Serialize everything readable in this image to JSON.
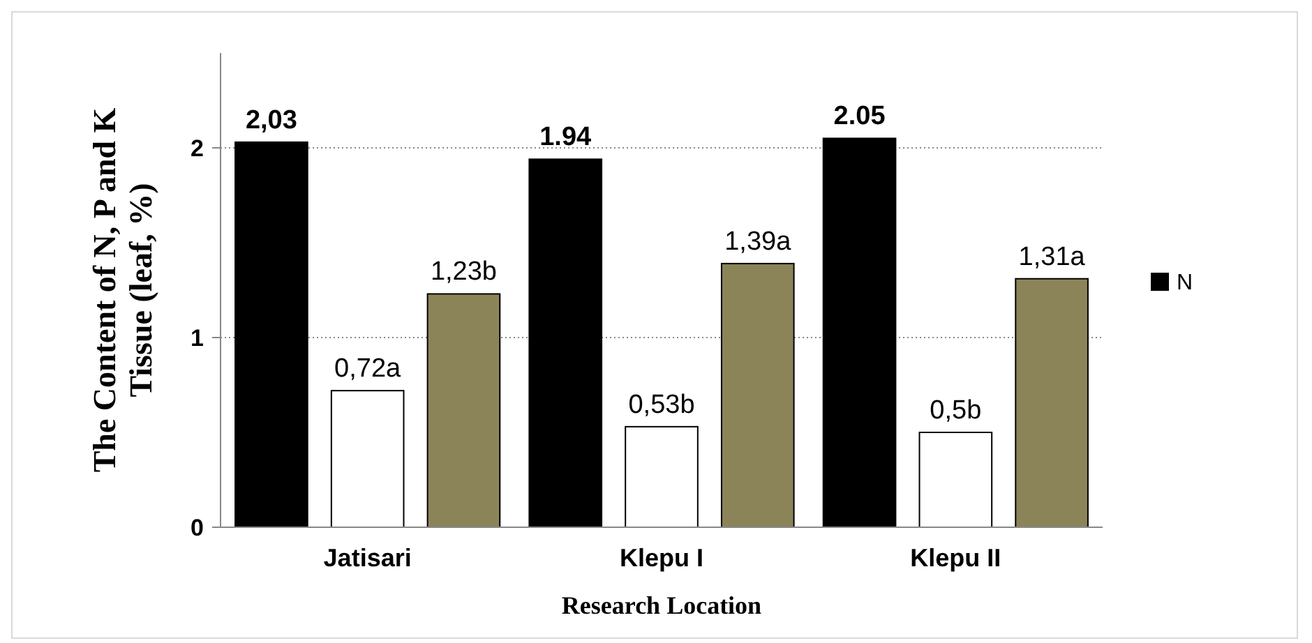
{
  "chart_data": {
    "type": "bar",
    "xlabel": "Research Location",
    "ylabel": "The Content of N, P and K Tissue  (leaf, %)",
    "categories": [
      "Jatisari",
      "Klepu I",
      "Klepu II"
    ],
    "series": [
      {
        "name": "N",
        "color": "#000000",
        "values": [
          2.03,
          1.94,
          2.05
        ],
        "value_labels": [
          "2,03",
          "1.94",
          "2.05"
        ]
      },
      {
        "color": "#ffffff",
        "values": [
          0.72,
          0.53,
          0.5
        ],
        "value_labels": [
          "0,72a",
          "0,53b",
          "0,5b"
        ]
      },
      {
        "color": "#8b8459",
        "values": [
          1.23,
          1.39,
          1.31
        ],
        "value_labels": [
          "1,23b",
          "1,39a",
          "1,31a"
        ]
      }
    ],
    "ylim": [
      0,
      2.5
    ],
    "yticks": [
      0,
      1,
      2
    ],
    "grid": "y",
    "legend": "right"
  }
}
